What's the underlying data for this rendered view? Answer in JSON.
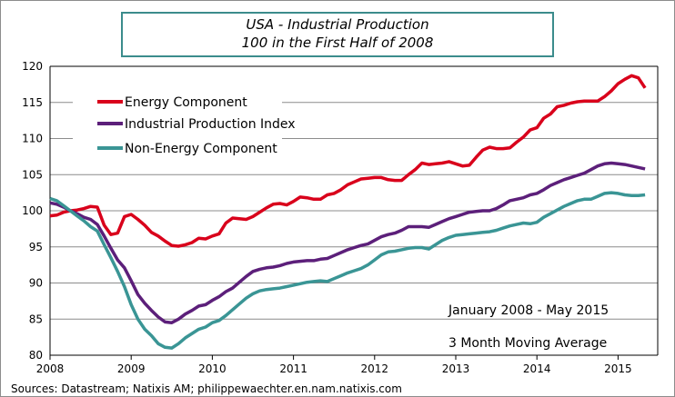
{
  "chart_data": {
    "type": "line",
    "title": "USA - Industrial Production",
    "subtitle": "100 in the First Half of 2008",
    "xlabel": "",
    "ylabel": "",
    "x_start": "2008-01",
    "x_end": "2015-05",
    "x_frequency": "monthly",
    "x_ticks": [
      "2008",
      "2009",
      "2010",
      "2011",
      "2012",
      "2013",
      "2014",
      "2015"
    ],
    "y_ticks": [
      80,
      85,
      90,
      95,
      100,
      105,
      110,
      115,
      120
    ],
    "ylim": [
      80,
      120
    ],
    "grid": "horizontal",
    "legend_position": "top-left",
    "annotations": [
      "January 2008 - May 2015",
      "3 Month Moving Average"
    ],
    "source": "Sources: Datastream; Natixis AM; philippewaechter.en.nam.natixis.com",
    "series": [
      {
        "name": "Energy Component",
        "color": "#d9001b",
        "values": [
          99.3,
          99.4,
          99.8,
          100.0,
          100.1,
          100.3,
          100.6,
          100.5,
          98.0,
          96.7,
          96.9,
          99.2,
          99.5,
          98.8,
          98.0,
          97.0,
          96.5,
          95.8,
          95.2,
          95.1,
          95.3,
          95.6,
          96.2,
          96.1,
          96.5,
          96.8,
          98.3,
          99.0,
          98.9,
          98.8,
          99.2,
          99.8,
          100.4,
          100.9,
          101.0,
          100.8,
          101.3,
          101.9,
          101.8,
          101.6,
          101.6,
          102.2,
          102.4,
          102.9,
          103.6,
          104.0,
          104.4,
          104.5,
          104.6,
          104.6,
          104.3,
          104.2,
          104.2,
          105.0,
          105.7,
          106.6,
          106.4,
          106.5,
          106.6,
          106.8,
          106.5,
          106.2,
          106.3,
          107.4,
          108.4,
          108.8,
          108.6,
          108.6,
          108.7,
          109.5,
          110.2,
          111.2,
          111.5,
          112.8,
          113.4,
          114.4,
          114.6,
          114.9,
          115.1,
          115.2,
          115.2,
          115.2,
          115.8,
          116.6,
          117.6,
          118.2,
          118.7,
          118.4,
          117.0
        ]
      },
      {
        "name": "Industrial Production Index",
        "color": "#5c1f7a",
        "values": [
          101.1,
          100.9,
          100.5,
          100.0,
          99.6,
          99.1,
          98.8,
          98.1,
          96.5,
          94.8,
          93.2,
          92.1,
          90.3,
          88.4,
          87.2,
          86.2,
          85.3,
          84.6,
          84.5,
          85.0,
          85.7,
          86.2,
          86.8,
          87.0,
          87.6,
          88.1,
          88.8,
          89.3,
          90.1,
          90.9,
          91.6,
          91.9,
          92.1,
          92.2,
          92.4,
          92.7,
          92.9,
          93.0,
          93.1,
          93.1,
          93.3,
          93.4,
          93.8,
          94.2,
          94.6,
          94.9,
          95.2,
          95.4,
          95.9,
          96.4,
          96.7,
          96.9,
          97.3,
          97.8,
          97.8,
          97.8,
          97.7,
          98.1,
          98.5,
          98.9,
          99.2,
          99.5,
          99.8,
          99.9,
          100.0,
          100.0,
          100.3,
          100.8,
          101.4,
          101.6,
          101.8,
          102.2,
          102.4,
          102.9,
          103.5,
          103.9,
          104.3,
          104.6,
          104.9,
          105.2,
          105.7,
          106.2,
          106.5,
          106.6,
          106.5,
          106.4,
          106.2,
          106.0,
          105.8
        ]
      },
      {
        "name": "Non-Energy Component",
        "color": "#3a9595",
        "values": [
          101.7,
          101.4,
          100.7,
          100.0,
          99.3,
          98.6,
          97.8,
          97.2,
          95.3,
          93.5,
          91.6,
          89.5,
          87.0,
          85.0,
          83.6,
          82.7,
          81.6,
          81.1,
          81.0,
          81.6,
          82.4,
          83.0,
          83.6,
          83.9,
          84.5,
          84.8,
          85.5,
          86.3,
          87.1,
          87.9,
          88.5,
          88.9,
          89.1,
          89.2,
          89.3,
          89.5,
          89.7,
          89.9,
          90.1,
          90.2,
          90.3,
          90.2,
          90.6,
          91.0,
          91.4,
          91.7,
          92.0,
          92.5,
          93.2,
          93.9,
          94.3,
          94.4,
          94.6,
          94.8,
          94.9,
          94.9,
          94.7,
          95.3,
          95.9,
          96.3,
          96.6,
          96.7,
          96.8,
          96.9,
          97.0,
          97.1,
          97.3,
          97.6,
          97.9,
          98.1,
          98.3,
          98.2,
          98.4,
          99.1,
          99.6,
          100.1,
          100.6,
          101.0,
          101.4,
          101.6,
          101.6,
          102.0,
          102.4,
          102.5,
          102.4,
          102.2,
          102.1,
          102.1,
          102.2
        ]
      }
    ]
  }
}
